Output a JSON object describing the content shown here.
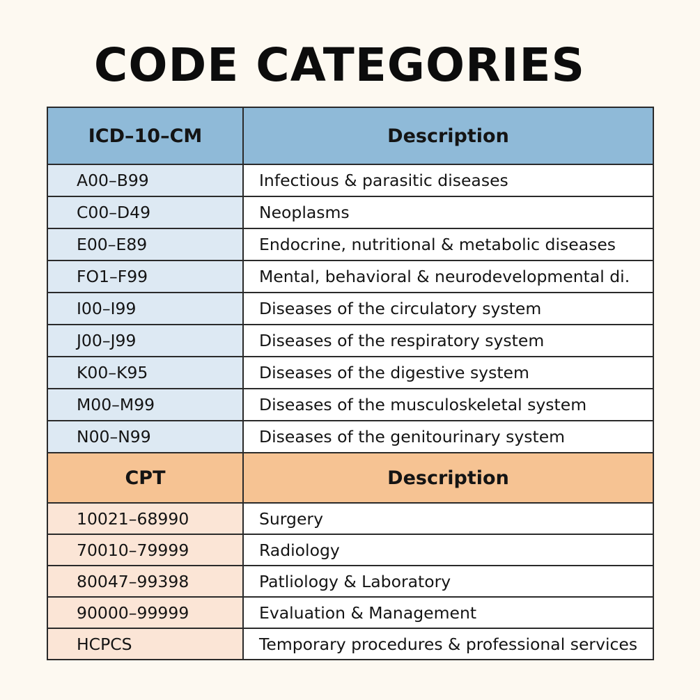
{
  "title": "CODE CATEGORIES",
  "icd": {
    "header": {
      "code": "ICD–10–CM",
      "description": "Description"
    },
    "rows": [
      {
        "code": "A00–B99",
        "description": "Infectious & parasitic diseases"
      },
      {
        "code": "C00–D49",
        "description": "Neoplasms"
      },
      {
        "code": "E00–E89",
        "description": "Endocrine, nutritional & metabolic diseases"
      },
      {
        "code": "FO1–F99",
        "description": "Mental, behavioral & neurodevelopmental di."
      },
      {
        "code": "I00–I99",
        "description": "Diseases of the circulatory system"
      },
      {
        "code": "J00–J99",
        "description": "Diseases of the respiratory system"
      },
      {
        "code": "K00–K95",
        "description": "Diseases of the digestive system"
      },
      {
        "code": "M00–M99",
        "description": "Diseases of the musculoskeletal system"
      },
      {
        "code": "N00–N99",
        "description": "Diseases of the genitourinary system"
      }
    ]
  },
  "cpt": {
    "header": {
      "code": "CPT",
      "description": "Description"
    },
    "rows": [
      {
        "code": "10021–68990",
        "description": "Surgery"
      },
      {
        "code": "70010–79999",
        "description": "Radiology"
      },
      {
        "code": "80047–99398",
        "description": "Patliology & Laboratory"
      },
      {
        "code": "90000–99999",
        "description": "Evaluation & Management"
      },
      {
        "code": "HCPCS",
        "description": "Temporary procedures & professional services"
      }
    ]
  },
  "colors": {
    "background": "#fdf9f1",
    "icd_header": "#8fbad8",
    "icd_code_cell": "#dde9f3",
    "cpt_header": "#f6c393",
    "cpt_code_cell": "#fbe5d6"
  }
}
